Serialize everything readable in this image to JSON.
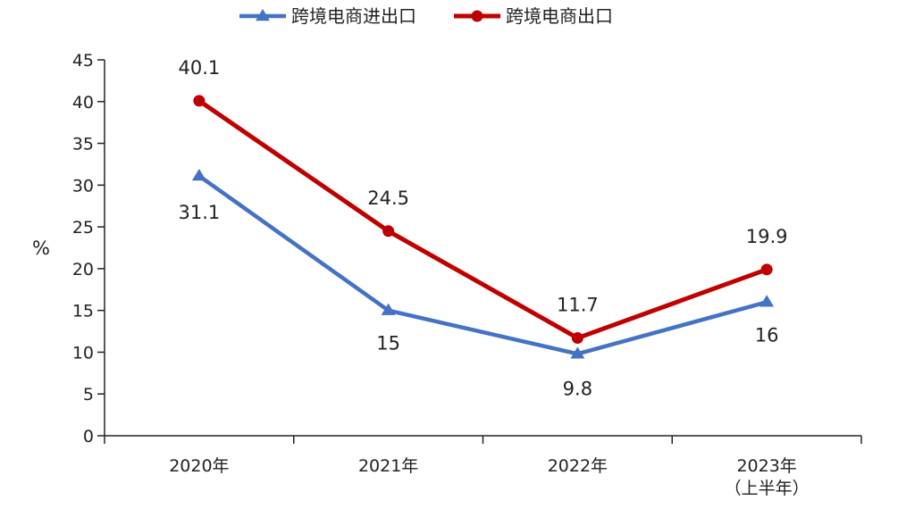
{
  "chart_data": {
    "type": "line",
    "title": "",
    "xlabel": "",
    "ylabel": "%",
    "ylim": [
      0,
      45
    ],
    "yticks": [
      0,
      5,
      10,
      15,
      20,
      25,
      30,
      35,
      40,
      45
    ],
    "grid": false,
    "legend_position": "top-center",
    "categories": [
      "2020年",
      "2021年",
      "2022年",
      "2023年\n（上半年）"
    ],
    "series": [
      {
        "name": "跨境电商进出口",
        "values": [
          31.1,
          15,
          9.8,
          16
        ],
        "labels": [
          "31.1",
          "15",
          "9.8",
          "16"
        ],
        "color": "#4472C4",
        "marker": "triangle"
      },
      {
        "name": "跨境电商出口",
        "values": [
          40.1,
          24.5,
          11.7,
          19.9
        ],
        "labels": [
          "40.1",
          "24.5",
          "11.7",
          "19.9"
        ],
        "color": "#C00000",
        "marker": "circle"
      }
    ]
  }
}
